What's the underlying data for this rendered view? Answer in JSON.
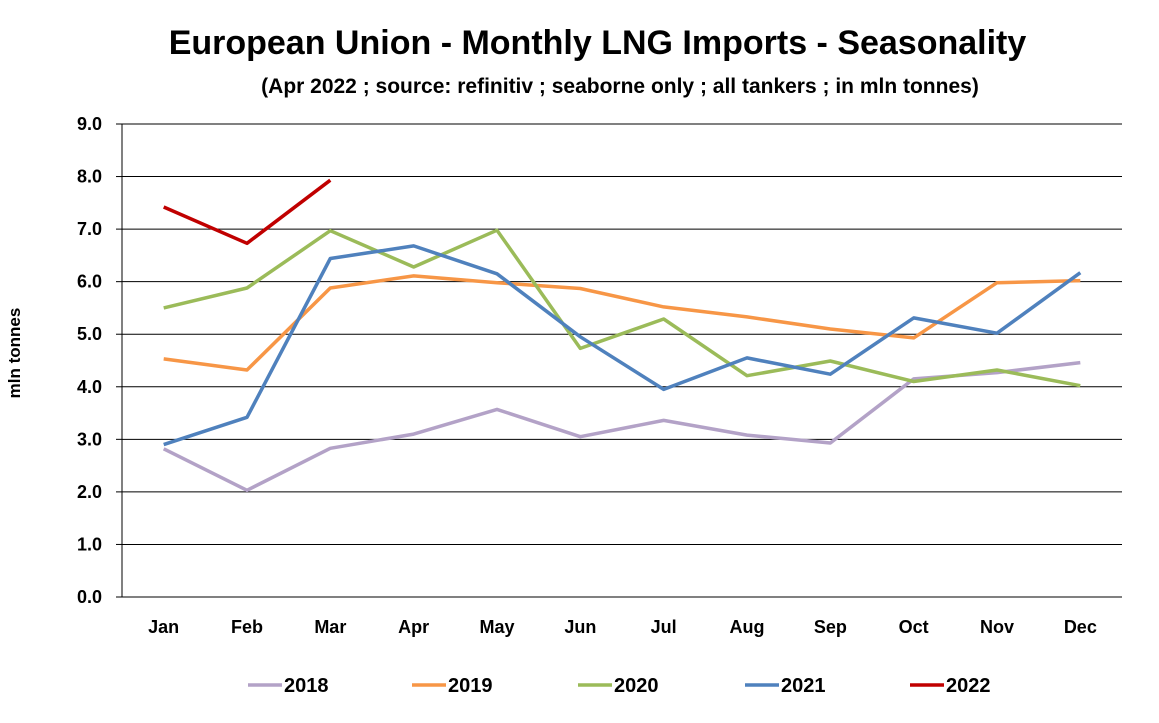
{
  "chart_data": {
    "type": "line",
    "title": "European Union - Monthly LNG Imports - Seasonality",
    "subtitle": "(Apr 2022 ; source: refinitiv ; seaborne only ; all tankers ; in mln tonnes)",
    "ylabel": "mln tonnes",
    "xlabel": "",
    "ylim": [
      0,
      9
    ],
    "y_ticks": [
      "0.0",
      "1.0",
      "2.0",
      "3.0",
      "4.0",
      "5.0",
      "6.0",
      "7.0",
      "8.0",
      "9.0"
    ],
    "grid": true,
    "legend_position": "bottom",
    "categories": [
      "Jan",
      "Feb",
      "Mar",
      "Apr",
      "May",
      "Jun",
      "Jul",
      "Aug",
      "Sep",
      "Oct",
      "Nov",
      "Dec"
    ],
    "series": [
      {
        "name": "2018",
        "color": "#b3a2c7",
        "values": [
          2.82,
          2.03,
          2.83,
          3.1,
          3.57,
          3.05,
          3.36,
          3.08,
          2.93,
          4.15,
          4.27,
          4.46
        ]
      },
      {
        "name": "2019",
        "color": "#f79646",
        "values": [
          4.53,
          4.32,
          5.88,
          6.11,
          5.98,
          5.87,
          5.52,
          5.33,
          5.1,
          4.93,
          5.98,
          6.02
        ]
      },
      {
        "name": "2020",
        "color": "#9bbb59",
        "values": [
          5.5,
          5.88,
          6.97,
          6.28,
          6.98,
          4.73,
          5.29,
          4.21,
          4.49,
          4.1,
          4.32,
          4.02
        ]
      },
      {
        "name": "2021",
        "color": "#4f81bd",
        "values": [
          2.9,
          3.42,
          6.44,
          6.68,
          6.15,
          4.95,
          3.95,
          4.55,
          4.24,
          5.31,
          5.02,
          6.17
        ]
      },
      {
        "name": "2022",
        "color": "#c00000",
        "values": [
          7.42,
          6.73,
          7.93,
          null,
          null,
          null,
          null,
          null,
          null,
          null,
          null,
          null
        ]
      }
    ]
  }
}
